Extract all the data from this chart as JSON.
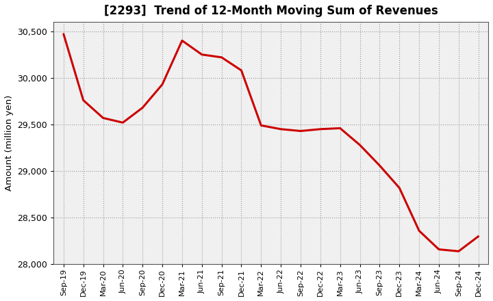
{
  "title": "[2293]  Trend of 12-Month Moving Sum of Revenues",
  "ylabel": "Amount (million yen)",
  "line_color": "#cc0000",
  "background_color": "#ffffff",
  "plot_bg_color": "#f0f0f0",
  "grid_color": "#999999",
  "xlabels": [
    "Sep-19",
    "Dec-19",
    "Mar-20",
    "Jun-20",
    "Sep-20",
    "Dec-20",
    "Mar-21",
    "Jun-21",
    "Sep-21",
    "Dec-21",
    "Mar-22",
    "Jun-22",
    "Sep-22",
    "Dec-22",
    "Mar-23",
    "Jun-23",
    "Sep-23",
    "Dec-23",
    "Mar-24",
    "Jun-24",
    "Sep-24",
    "Dec-24"
  ],
  "values": [
    30470,
    29760,
    29570,
    29520,
    29680,
    29930,
    30400,
    30250,
    30220,
    30080,
    29490,
    29450,
    29430,
    29450,
    29460,
    29280,
    29060,
    28820,
    28360,
    28160,
    28140,
    28300
  ],
  "ylim": [
    28000,
    30600
  ],
  "yticks": [
    28000,
    28500,
    29000,
    29500,
    30000,
    30500
  ]
}
